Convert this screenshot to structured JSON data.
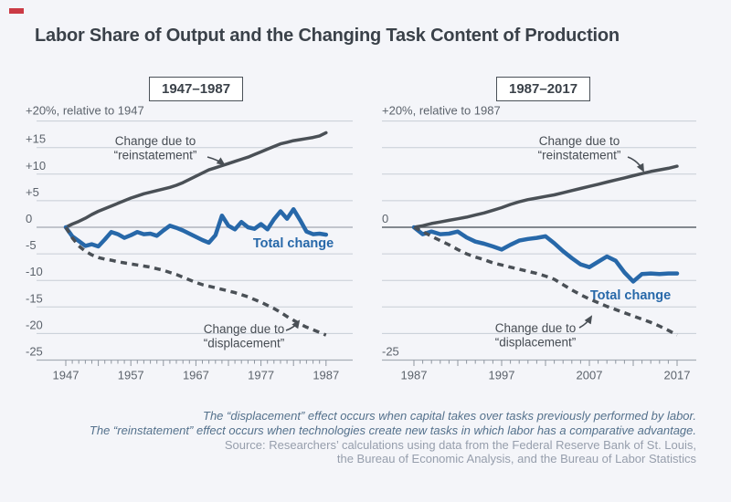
{
  "title": "Labor Share of Output and the Changing Task Content of Production",
  "brand_color": "#cb3a45",
  "chart_data": [
    {
      "type": "line",
      "title": "1947–1987",
      "axis_note": "+20%, relative to 1947",
      "x_start": 1947,
      "x_end": 1987,
      "x_ticks": [
        1947,
        1957,
        1967,
        1977,
        1987
      ],
      "ylim": [
        -25,
        20
      ],
      "grid": true,
      "y_gridlines": [
        20,
        15,
        10,
        5,
        0,
        -5,
        -10,
        -15,
        -20,
        -25
      ],
      "y_tick_labels": [
        {
          "value": 15,
          "label": "+15"
        },
        {
          "value": 10,
          "label": "+10"
        },
        {
          "value": 5,
          "label": "+5"
        },
        {
          "value": 0,
          "label": "0"
        },
        {
          "value": -5,
          "label": "-5"
        },
        {
          "value": -10,
          "label": "-10"
        },
        {
          "value": -15,
          "label": "-15"
        },
        {
          "value": -20,
          "label": "-20"
        },
        {
          "value": -25,
          "label": "-25"
        }
      ],
      "series": [
        {
          "name": "reinstatement",
          "label_lines": [
            "Change due to",
            "“reinstatement”"
          ],
          "style": "solid",
          "color": "#4a5056",
          "values": [
            0,
            0.6,
            1.1,
            1.7,
            2.4,
            3.0,
            3.5,
            4.0,
            4.5,
            5.0,
            5.5,
            5.9,
            6.3,
            6.6,
            6.9,
            7.2,
            7.5,
            7.9,
            8.4,
            9.0,
            9.6,
            10.2,
            10.8,
            11.2,
            11.6,
            12.0,
            12.4,
            12.8,
            13.2,
            13.7,
            14.2,
            14.7,
            15.2,
            15.7,
            16.0,
            16.3,
            16.5,
            16.7,
            16.9,
            17.2,
            17.8
          ]
        },
        {
          "name": "total-change",
          "label_lines": [
            "Total change"
          ],
          "style": "solid",
          "color": "#2768a9",
          "values": [
            0,
            -1.7,
            -2.6,
            -3.5,
            -3.2,
            -3.6,
            -2.3,
            -0.9,
            -1.3,
            -2.0,
            -1.5,
            -0.9,
            -1.3,
            -1.2,
            -1.6,
            -0.6,
            0.3,
            -0.1,
            -0.6,
            -1.2,
            -1.8,
            -2.4,
            -2.9,
            -1.5,
            2.2,
            0.3,
            -0.4,
            1.0,
            0.0,
            -0.3,
            0.6,
            -0.4,
            1.5,
            3.0,
            1.6,
            3.4,
            1.4,
            -0.8,
            -1.3,
            -1.2,
            -1.4
          ]
        },
        {
          "name": "displacement",
          "label_lines": [
            "Change due to",
            "“displacement”"
          ],
          "style": "dashed",
          "color": "#4a5056",
          "values": [
            0,
            -2.0,
            -3.5,
            -4.5,
            -5.2,
            -5.7,
            -6.0,
            -6.2,
            -6.5,
            -6.7,
            -6.9,
            -7.1,
            -7.3,
            -7.5,
            -7.8,
            -8.1,
            -8.5,
            -8.9,
            -9.4,
            -9.9,
            -10.4,
            -10.8,
            -11.1,
            -11.4,
            -11.7,
            -12.0,
            -12.3,
            -12.7,
            -13.1,
            -13.6,
            -14.1,
            -14.7,
            -15.3,
            -16.0,
            -16.8,
            -17.5,
            -18.2,
            -18.8,
            -19.3,
            -19.8,
            -20.3
          ]
        }
      ]
    },
    {
      "type": "line",
      "title": "1987–2017",
      "axis_note": "+20%, relative to 1987",
      "x_start": 1987,
      "x_end": 2017,
      "x_ticks": [
        1987,
        1997,
        2007,
        2017
      ],
      "ylim": [
        -25,
        20
      ],
      "grid": true,
      "y_gridlines": [
        20,
        15,
        10,
        5,
        0,
        -5,
        -10,
        -15,
        -20,
        -25
      ],
      "y_tick_labels": [
        {
          "value": 0,
          "label": "0"
        },
        {
          "value": -25,
          "label": "-25"
        }
      ],
      "series": [
        {
          "name": "reinstatement",
          "label_lines": [
            "Change due to",
            "“reinstatement”"
          ],
          "style": "solid",
          "color": "#4a5056",
          "values": [
            0,
            0.3,
            0.7,
            1.0,
            1.3,
            1.6,
            1.9,
            2.3,
            2.7,
            3.2,
            3.7,
            4.3,
            4.8,
            5.2,
            5.5,
            5.8,
            6.1,
            6.5,
            6.9,
            7.3,
            7.7,
            8.1,
            8.5,
            8.9,
            9.3,
            9.7,
            10.1,
            10.5,
            10.8,
            11.1,
            11.5
          ]
        },
        {
          "name": "total-change",
          "label_lines": [
            "Total change"
          ],
          "style": "solid",
          "color": "#2768a9",
          "values": [
            0,
            -1.3,
            -0.8,
            -1.3,
            -1.2,
            -0.8,
            -1.9,
            -2.7,
            -3.1,
            -3.6,
            -4.2,
            -3.3,
            -2.5,
            -2.2,
            -2.0,
            -1.7,
            -3.0,
            -4.5,
            -5.8,
            -7.0,
            -7.5,
            -6.5,
            -5.5,
            -6.3,
            -8.5,
            -10.2,
            -8.8,
            -8.7,
            -8.8,
            -8.7,
            -8.7
          ]
        },
        {
          "name": "displacement",
          "label_lines": [
            "Change due to",
            "“displacement”"
          ],
          "style": "dashed",
          "color": "#4a5056",
          "values": [
            0,
            -0.8,
            -1.7,
            -2.5,
            -3.3,
            -4.2,
            -5.0,
            -5.6,
            -6.1,
            -6.7,
            -7.1,
            -7.5,
            -7.9,
            -8.3,
            -8.7,
            -9.2,
            -9.8,
            -10.8,
            -11.8,
            -12.7,
            -13.5,
            -14.2,
            -14.9,
            -15.5,
            -16.1,
            -16.7,
            -17.3,
            -17.9,
            -18.6,
            -19.4,
            -20.3
          ]
        }
      ]
    }
  ],
  "notes": {
    "line1": "The “displacement” effect occurs when capital takes over tasks previously performed by labor.",
    "line2": "The “reinstatement” effect occurs when technologies create new tasks in which labor has a comparative advantage.",
    "line3": "Source: Researchers’ calculations using data from the Federal Reserve Bank of St. Louis,",
    "line4": "the Bureau of Economic Analysis, and the Bureau of Labor Statistics"
  },
  "colors": {
    "background": "#f4f5f9",
    "blue_line": "#2768a9",
    "dark_line": "#4a5056",
    "gridline": "#c7cdd6",
    "axis": "#a7aeb7",
    "tick_text": "#5c636c",
    "title_text": "#3a4149",
    "note_italic": "#54718c",
    "note_source": "#969eac"
  }
}
